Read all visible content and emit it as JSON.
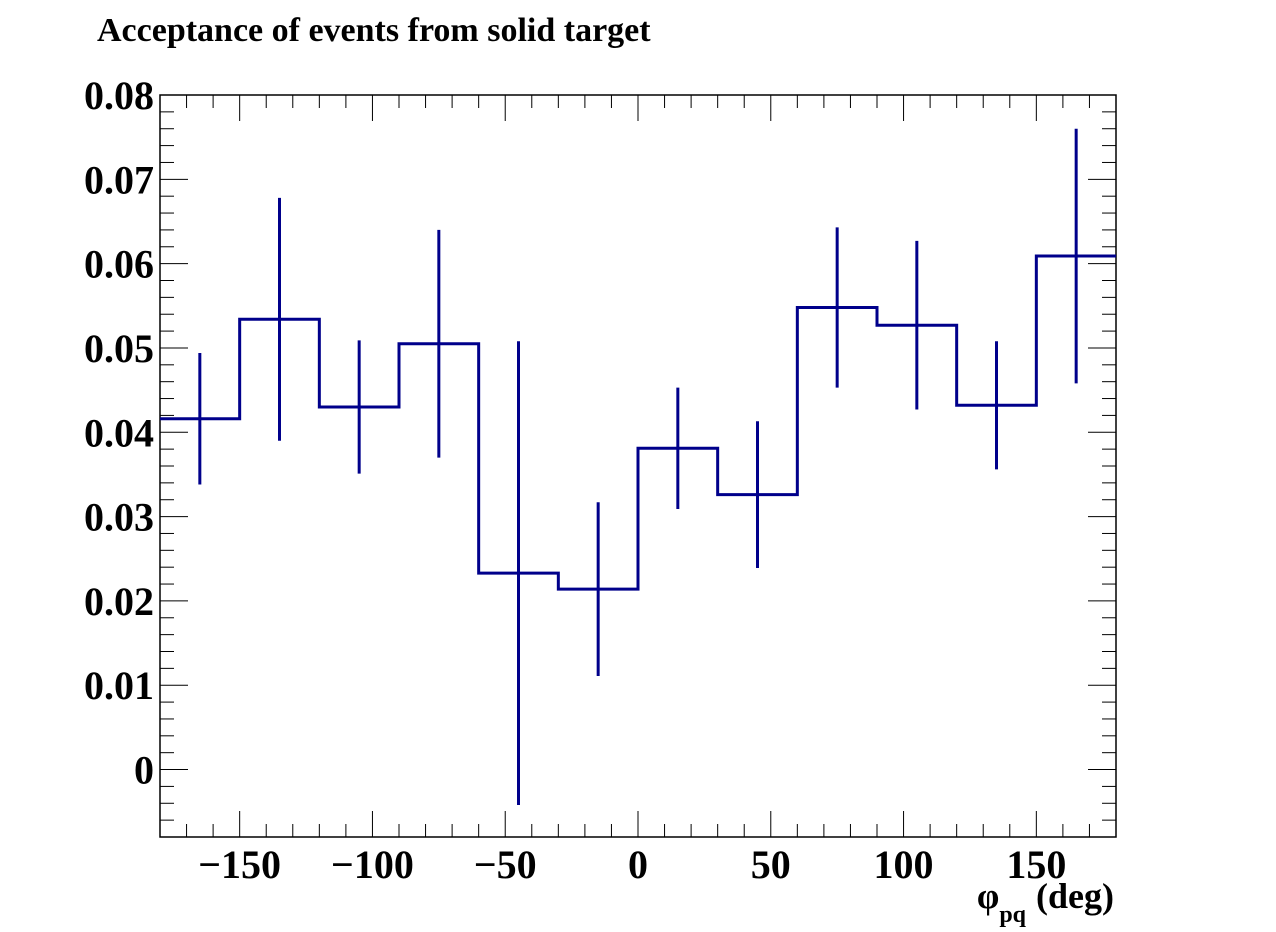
{
  "chart_data": {
    "type": "histogram",
    "title": "Acceptance of events from solid target",
    "xlabel": {
      "symbol": "φ",
      "subscript": "pq",
      "unit": "(deg)"
    },
    "ylabel": "",
    "xlim": [
      -180,
      180
    ],
    "ylim": [
      -0.008,
      0.08
    ],
    "x_ticks": [
      -150,
      -100,
      -50,
      0,
      50,
      100,
      150
    ],
    "x_tick_labels": [
      "−150",
      "−100",
      "−50",
      "0",
      "50",
      "100",
      "150"
    ],
    "y_ticks": [
      0,
      0.01,
      0.02,
      0.03,
      0.04,
      0.05,
      0.06,
      0.07,
      0.08
    ],
    "y_tick_labels": [
      "0",
      "0.01",
      "0.02",
      "0.03",
      "0.04",
      "0.05",
      "0.06",
      "0.07",
      "0.08"
    ],
    "bin_edges": [
      -180,
      -150,
      -120,
      -90,
      -60,
      -30,
      0,
      30,
      60,
      90,
      120,
      150,
      180
    ],
    "values": [
      0.0416,
      0.0534,
      0.043,
      0.0505,
      0.0233,
      0.0214,
      0.0381,
      0.0326,
      0.0548,
      0.0527,
      0.0432,
      0.0609
    ],
    "errors": [
      0.0078,
      0.0144,
      0.0079,
      0.0135,
      0.0275,
      0.0103,
      0.0072,
      0.0087,
      0.0095,
      0.01,
      0.0076,
      0.0151
    ],
    "grid": false,
    "color": "#00008b"
  }
}
